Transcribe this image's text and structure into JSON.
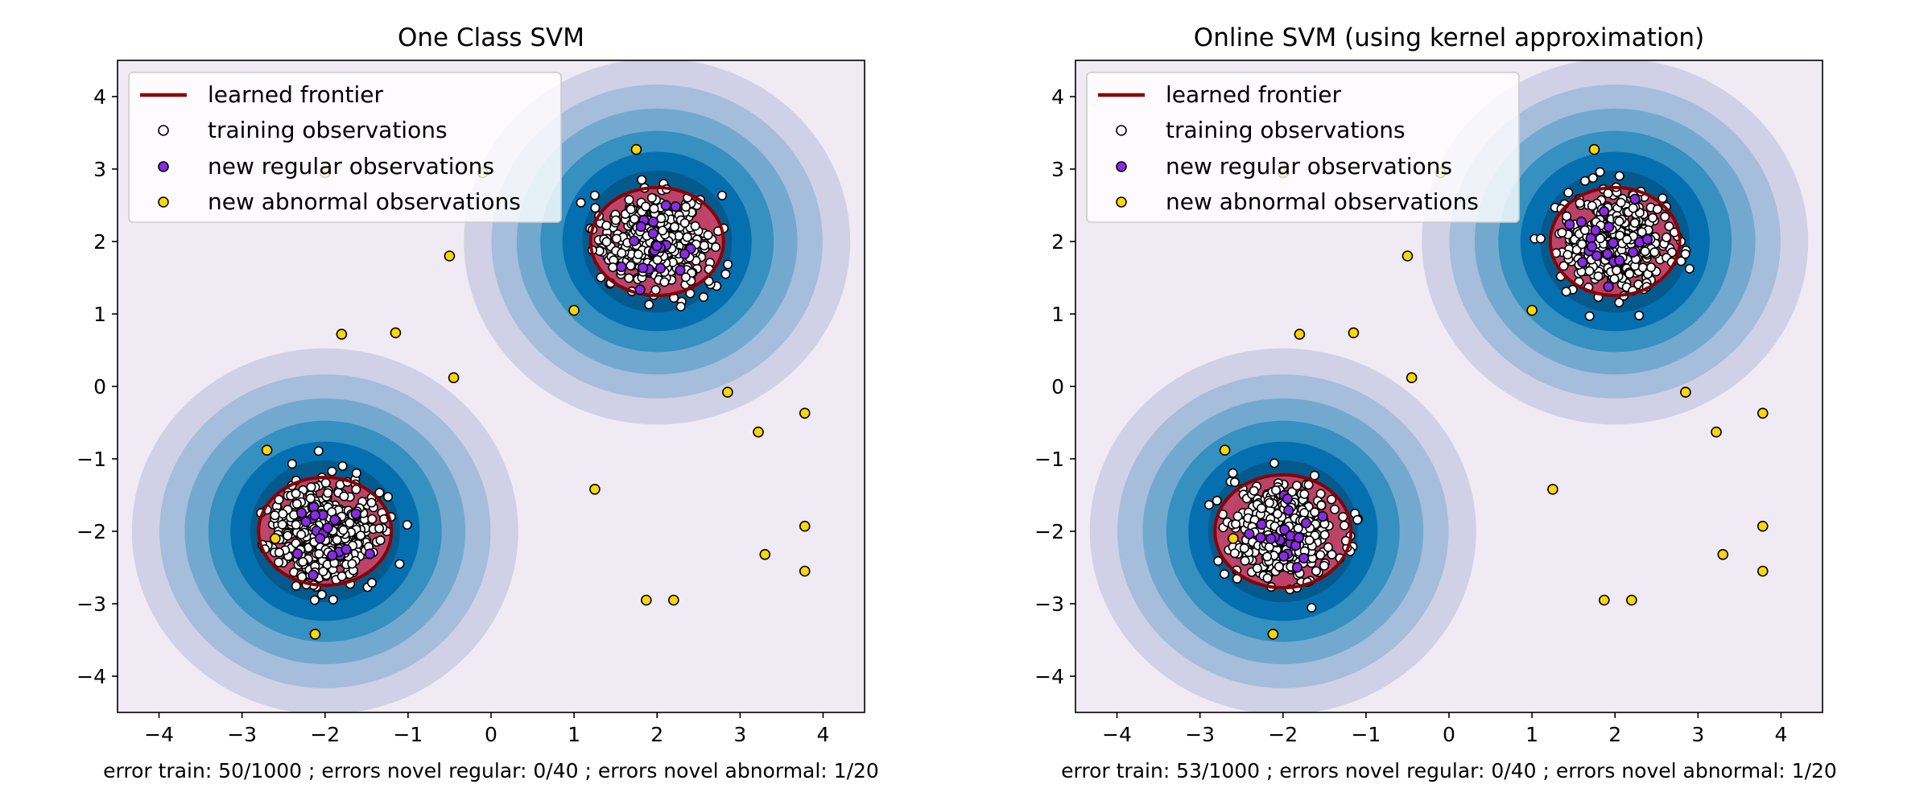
{
  "chart_data": [
    {
      "type": "scatter",
      "title": "One Class SVM",
      "xlabel": "error train: 50/1000 ; errors novel regular: 0/40 ; errors novel abnormal: 1/20",
      "ylabel": "",
      "xlim": [
        -4.5,
        4.5
      ],
      "ylim": [
        -4.5,
        4.5
      ],
      "xticks": [
        -4,
        -3,
        -2,
        -1,
        0,
        1,
        2,
        3,
        4
      ],
      "yticks": [
        -4,
        -3,
        -2,
        -1,
        0,
        1,
        2,
        3,
        4
      ],
      "xtick_labels": [
        "−4",
        "−3",
        "−2",
        "−1",
        "0",
        "1",
        "2",
        "3",
        "4"
      ],
      "ytick_labels": [
        "−4",
        "−3",
        "−2",
        "−1",
        "0",
        "1",
        "2",
        "3",
        "4"
      ],
      "grid": false,
      "legend_position": "top-left",
      "legend": [
        "learned frontier",
        "training observations",
        "new regular observations",
        "new abnormal observations"
      ],
      "clusters": [
        {
          "center": [
            2.0,
            2.0
          ],
          "frontier_radius": [
            0.8,
            0.65
          ]
        },
        {
          "center": [
            -2.0,
            -2.0
          ],
          "frontier_radius": [
            0.8,
            0.65
          ]
        }
      ],
      "training_observations": {
        "count": 1000,
        "approx_extent": [
          [
            -2.95,
            -0.95
          ],
          [
            -3.45,
            -0.85
          ],
          [
            1.0,
            3.0
          ],
          [
            1.25,
            3.15
          ]
        ]
      },
      "new_regular_observations": {
        "count": 40
      },
      "new_abnormal_observations": [
        [
          1.75,
          3.27
        ],
        [
          -0.5,
          1.8
        ],
        [
          1.0,
          1.05
        ],
        [
          -1.8,
          0.72
        ],
        [
          -1.15,
          0.74
        ],
        [
          -0.45,
          0.12
        ],
        [
          2.85,
          -0.08
        ],
        [
          3.22,
          -0.63
        ],
        [
          3.78,
          -0.37
        ],
        [
          1.25,
          -1.42
        ],
        [
          3.78,
          -1.93
        ],
        [
          3.3,
          -2.32
        ],
        [
          3.78,
          -2.55
        ],
        [
          1.87,
          -2.95
        ],
        [
          2.2,
          -2.95
        ],
        [
          -2.7,
          -0.88
        ],
        [
          -2.12,
          -3.42
        ],
        [
          -2.6,
          -2.1
        ],
        [
          -0.1,
          2.95
        ],
        [
          -2.0,
          2.95
        ]
      ]
    },
    {
      "type": "scatter",
      "title": "Online SVM (using kernel approximation)",
      "xlabel": "error train: 53/1000 ; errors novel regular: 0/40 ; errors novel abnormal: 1/20",
      "ylabel": "",
      "xlim": [
        -4.5,
        4.5
      ],
      "ylim": [
        -4.5,
        4.5
      ],
      "xticks": [
        -4,
        -3,
        -2,
        -1,
        0,
        1,
        2,
        3,
        4
      ],
      "yticks": [
        -4,
        -3,
        -2,
        -1,
        0,
        1,
        2,
        3,
        4
      ],
      "xtick_labels": [
        "−4",
        "−3",
        "−2",
        "−1",
        "0",
        "1",
        "2",
        "3",
        "4"
      ],
      "ytick_labels": [
        "−4",
        "−3",
        "−2",
        "−1",
        "0",
        "1",
        "2",
        "3",
        "4"
      ],
      "grid": false,
      "legend_position": "top-left",
      "legend": [
        "learned frontier",
        "training observations",
        "new regular observations",
        "new abnormal observations"
      ],
      "clusters": [
        {
          "center": [
            2.0,
            2.0
          ],
          "frontier_radius": [
            0.78,
            0.65
          ]
        },
        {
          "center": [
            -2.0,
            -2.0
          ],
          "frontier_radius": [
            0.82,
            0.68
          ]
        }
      ],
      "training_observations": {
        "count": 1000,
        "approx_extent": [
          [
            -2.95,
            -0.95
          ],
          [
            -3.45,
            -0.85
          ],
          [
            1.0,
            3.0
          ],
          [
            1.25,
            3.15
          ]
        ]
      },
      "new_regular_observations": {
        "count": 40
      },
      "new_abnormal_observations": [
        [
          1.75,
          3.27
        ],
        [
          -0.5,
          1.8
        ],
        [
          1.0,
          1.05
        ],
        [
          -1.8,
          0.72
        ],
        [
          -1.15,
          0.74
        ],
        [
          -0.45,
          0.12
        ],
        [
          2.85,
          -0.08
        ],
        [
          3.22,
          -0.63
        ],
        [
          3.78,
          -0.37
        ],
        [
          1.25,
          -1.42
        ],
        [
          3.78,
          -1.93
        ],
        [
          3.3,
          -2.32
        ],
        [
          3.78,
          -2.55
        ],
        [
          1.87,
          -2.95
        ],
        [
          2.2,
          -2.95
        ],
        [
          -2.7,
          -0.88
        ],
        [
          -2.12,
          -3.42
        ],
        [
          -2.6,
          -2.1
        ],
        [
          -0.1,
          2.95
        ],
        [
          -2.0,
          2.95
        ]
      ]
    }
  ],
  "colors": {
    "background": "#f0eaf4",
    "contour_levels": [
      "#d0d1e6",
      "#a6bddb",
      "#74a9cf",
      "#3690c0",
      "#0570b0",
      "#045a8d",
      "#023858"
    ],
    "frontier": "#8b0000",
    "frontier_fill": "#d1446a",
    "training": "#ffffff",
    "regular": "#8a2be2",
    "abnormal": "#ffd700"
  }
}
